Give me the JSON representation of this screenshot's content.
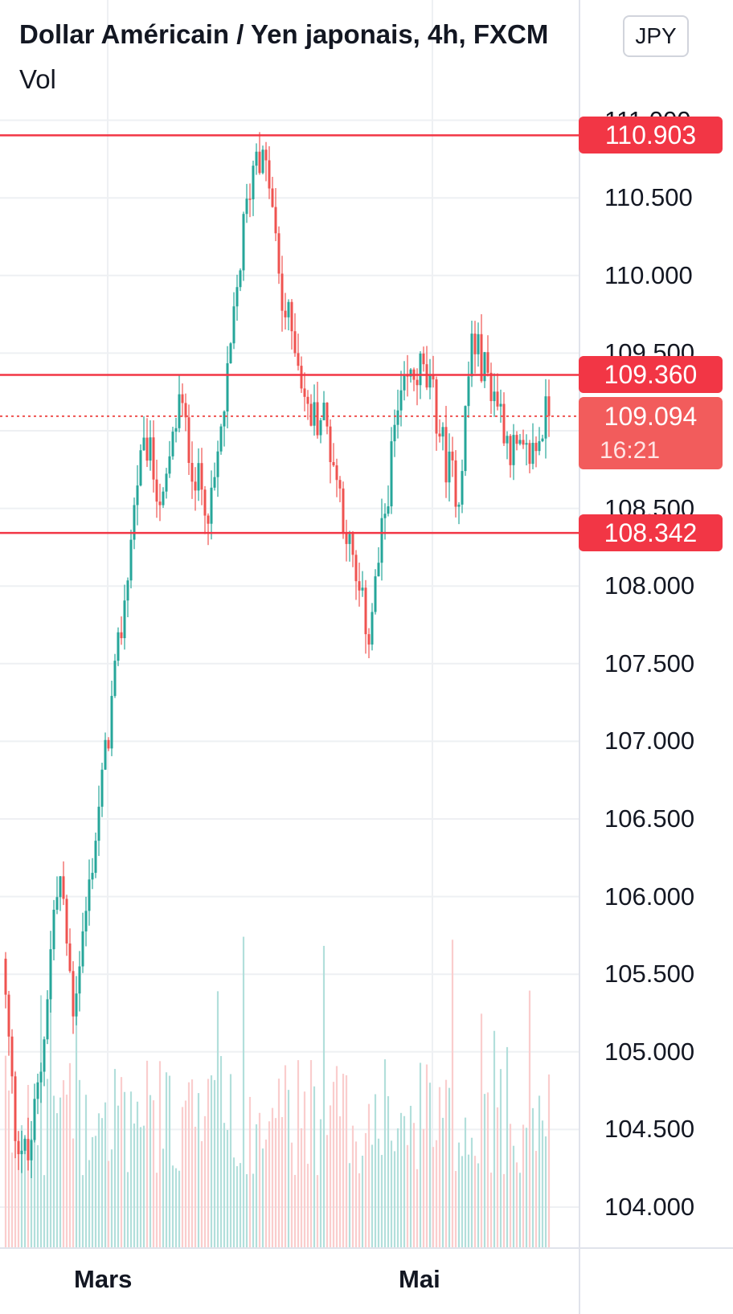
{
  "header": {
    "title": "Dollar Américain / Yen japonais, 4h, FXCM",
    "volume_label": "Vol",
    "currency_button": "JPY"
  },
  "chart_data": {
    "type": "candlestick",
    "symbol": "USD/JPY",
    "interval": "4h",
    "price_range": [
      103.75,
      111.25
    ],
    "price_ticks": [
      "104.000",
      "104.500",
      "105.000",
      "105.500",
      "106.000",
      "106.500",
      "107.000",
      "107.500",
      "108.000",
      "108.500",
      "109.000",
      "109.500",
      "110.000",
      "110.500",
      "111.000"
    ],
    "time_labels": [
      "Mars",
      "Mai"
    ],
    "horizontal_levels": [
      {
        "price": 110.903,
        "label": "110.903"
      },
      {
        "price": 109.36,
        "label": "109.360"
      },
      {
        "price": 108.342,
        "label": "108.342"
      }
    ],
    "current_price": {
      "price": 109.094,
      "label": "109.094",
      "countdown": "16:21"
    },
    "price_path": [
      [
        0,
        105.6
      ],
      [
        4,
        104.5
      ],
      [
        8,
        104.3
      ],
      [
        12,
        104.9
      ],
      [
        16,
        105.9
      ],
      [
        18,
        106.1
      ],
      [
        22,
        105.3
      ],
      [
        26,
        105.9
      ],
      [
        32,
        106.9
      ],
      [
        38,
        107.9
      ],
      [
        42,
        108.7
      ],
      [
        45,
        108.9
      ],
      [
        50,
        108.5
      ],
      [
        55,
        109.2
      ],
      [
        60,
        108.7
      ],
      [
        65,
        108.5
      ],
      [
        70,
        109.3
      ],
      [
        75,
        110.3
      ],
      [
        79,
        110.85
      ],
      [
        83,
        110.6
      ],
      [
        87,
        109.8
      ],
      [
        91,
        109.6
      ],
      [
        95,
        109.1
      ],
      [
        100,
        109.1
      ],
      [
        105,
        108.6
      ],
      [
        110,
        108.0
      ],
      [
        114,
        107.7
      ],
      [
        118,
        108.3
      ],
      [
        122,
        109.0
      ],
      [
        126,
        109.3
      ],
      [
        130,
        109.4
      ],
      [
        134,
        109.2
      ],
      [
        138,
        108.8
      ],
      [
        142,
        108.6
      ],
      [
        146,
        109.6
      ],
      [
        150,
        109.4
      ],
      [
        154,
        109.2
      ],
      [
        158,
        108.9
      ],
      [
        162,
        108.8
      ],
      [
        166,
        108.9
      ],
      [
        169,
        109.1
      ]
    ],
    "up_color": "#26a69a",
    "down_color": "#ef5350",
    "level_color": "#f23645",
    "grid": true
  }
}
